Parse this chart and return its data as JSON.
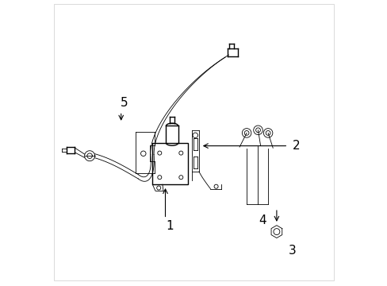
{
  "bg_color": "#ffffff",
  "line_color": "#000000",
  "line_width": 1.0,
  "thin_line": 0.6,
  "figsize": [
    4.89,
    3.6
  ],
  "dpi": 100
}
